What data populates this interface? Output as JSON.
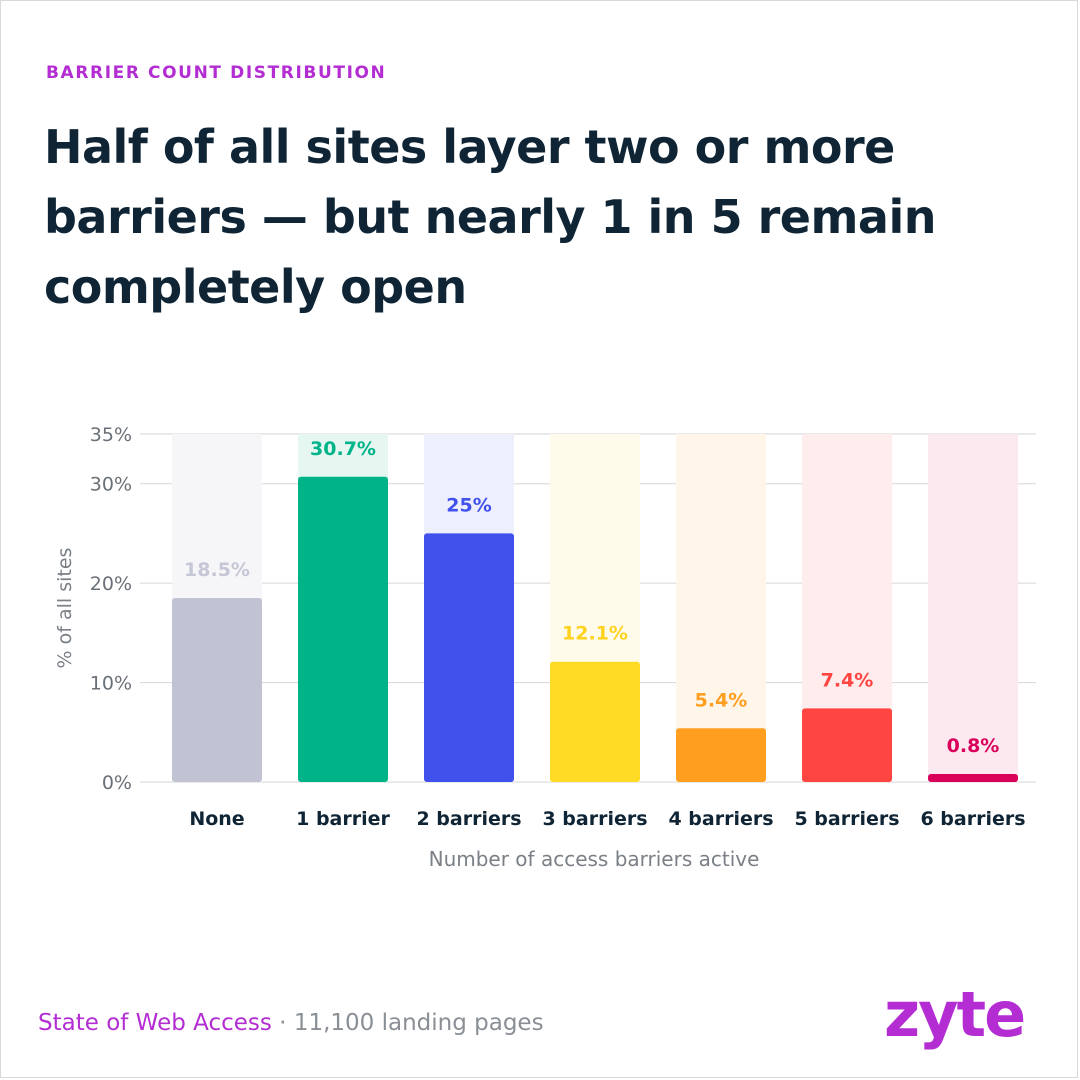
{
  "header": {
    "eyebrow": "BARRIER COUNT DISTRIBUTION",
    "title": "Half of all sites layer two or more barriers — but nearly 1 in 5 remain completely open"
  },
  "footer": {
    "source": "State of Web Access",
    "separator": " · ",
    "detail": "11,100 landing pages",
    "logo_text": "zyte"
  },
  "colors": {
    "accent": "#b32dd3",
    "title": "#0f2535",
    "grid": "#d6d6d6",
    "axis_text": "#6b7178"
  },
  "chart_data": {
    "type": "bar",
    "categories": [
      "None",
      "1 barrier",
      "2 barriers",
      "3 barriers",
      "4 barriers",
      "5 barriers",
      "6 barriers"
    ],
    "values": [
      18.5,
      30.7,
      25,
      12.1,
      5.4,
      7.4,
      0.8
    ],
    "value_labels": [
      "18.5%",
      "30.7%",
      "25%",
      "12.1%",
      "5.4%",
      "7.4%",
      "0.8%"
    ],
    "bar_colors": [
      "#c1c3d4",
      "#00b389",
      "#4051ec",
      "#ffdb26",
      "#ff9e1f",
      "#ff4542",
      "#d9005b"
    ],
    "label_colors": [
      "#c5c7d6",
      "#00b389",
      "#4051ec",
      "#ffd21f",
      "#ff9e1f",
      "#ff4542",
      "#d9005b"
    ],
    "track_colors": [
      "#f6f6f8",
      "#e6f7f1",
      "#eeeffc",
      "#fffbea",
      "#fff5e9",
      "#ffecec",
      "#fce8ef"
    ],
    "xlabel": "Number of access barriers active",
    "ylabel": "% of all sites",
    "ylim": [
      0,
      35
    ],
    "yticks": [
      0,
      10,
      20,
      30,
      35
    ],
    "ytick_labels": [
      "0%",
      "10%",
      "20%",
      "30%",
      "35%"
    ],
    "grid": true
  }
}
